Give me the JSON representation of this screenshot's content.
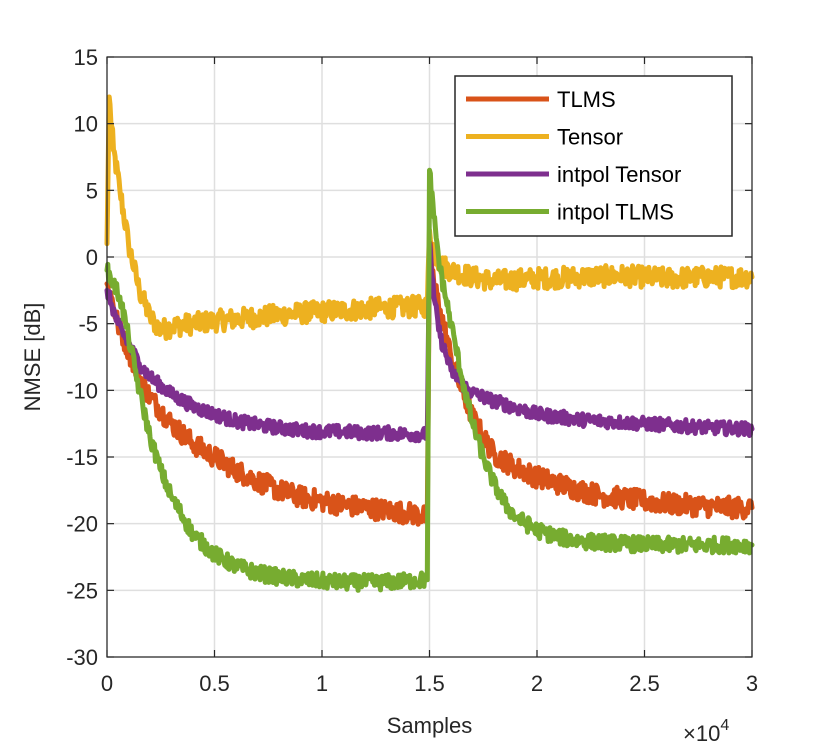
{
  "chart_data": {
    "type": "line",
    "title": "",
    "xlabel": "Samples",
    "ylabel": "NMSE [dB]",
    "x_exponent_label": "×10",
    "x_exponent_power": "4",
    "xlim": [
      0,
      3
    ],
    "ylim": [
      -30,
      15
    ],
    "xticks": [
      0,
      0.5,
      1,
      1.5,
      2,
      2.5,
      3
    ],
    "xtick_labels": [
      "0",
      "0.5",
      "1",
      "1.5",
      "2",
      "2.5",
      "3"
    ],
    "yticks": [
      -30,
      -25,
      -20,
      -15,
      -10,
      -5,
      0,
      5,
      10,
      15
    ],
    "ytick_labels": [
      "-30",
      "-25",
      "-20",
      "-15",
      "-10",
      "-5",
      "0",
      "5",
      "10",
      "15"
    ],
    "grid": true,
    "legend_position": "top-right",
    "series": [
      {
        "name": "TLMS",
        "color": "#D95319",
        "noise": 0.8,
        "x": [
          0,
          0.02,
          0.05,
          0.1,
          0.15,
          0.2,
          0.3,
          0.4,
          0.5,
          0.6,
          0.7,
          0.8,
          0.9,
          1.0,
          1.1,
          1.2,
          1.3,
          1.4,
          1.49,
          1.5,
          1.52,
          1.55,
          1.6,
          1.65,
          1.7,
          1.75,
          1.8,
          1.9,
          2.0,
          2.1,
          2.2,
          2.3,
          2.4,
          2.5,
          2.6,
          2.7,
          2.8,
          2.9,
          3.0
        ],
        "values": [
          -2,
          -3,
          -5,
          -7,
          -9,
          -10.5,
          -12.5,
          -14,
          -15,
          -16,
          -16.8,
          -17.5,
          -18,
          -18.3,
          -18.6,
          -18.8,
          -19,
          -19.2,
          -19.5,
          1,
          -2,
          -4,
          -7.5,
          -10,
          -12,
          -13.5,
          -14.8,
          -15.8,
          -16.5,
          -17,
          -17.5,
          -17.9,
          -18.1,
          -18.3,
          -18.5,
          -18.6,
          -18.7,
          -18.8,
          -18.8
        ]
      },
      {
        "name": "Tensor",
        "color": "#EDB120",
        "noise": 0.8,
        "x": [
          0,
          0.01,
          0.03,
          0.06,
          0.1,
          0.15,
          0.2,
          0.25,
          0.3,
          0.4,
          0.5,
          0.7,
          0.9,
          1.1,
          1.3,
          1.49,
          1.5,
          1.52,
          1.55,
          1.6,
          1.7,
          1.8,
          2.0,
          2.2,
          2.4,
          2.6,
          2.8,
          3.0
        ],
        "values": [
          1,
          12,
          8,
          5,
          1,
          -2.5,
          -4.5,
          -5.5,
          -5.2,
          -5,
          -4.8,
          -4.5,
          -4.2,
          -4,
          -3.8,
          -3.7,
          2,
          0.5,
          -0.5,
          -1,
          -1.5,
          -1.8,
          -1.6,
          -1.5,
          -1.4,
          -1.6,
          -1.5,
          -1.5
        ]
      },
      {
        "name": "intpol Tensor",
        "color": "#7E2F8E",
        "noise": 0.5,
        "x": [
          0,
          0.02,
          0.05,
          0.1,
          0.15,
          0.2,
          0.3,
          0.4,
          0.5,
          0.6,
          0.7,
          0.8,
          0.9,
          1.0,
          1.1,
          1.2,
          1.3,
          1.4,
          1.49,
          1.5,
          1.52,
          1.55,
          1.6,
          1.65,
          1.7,
          1.8,
          1.9,
          2.0,
          2.2,
          2.4,
          2.6,
          2.8,
          3.0
        ],
        "values": [
          -2.5,
          -3.5,
          -5,
          -6.5,
          -8,
          -9,
          -10.3,
          -11.2,
          -11.8,
          -12.3,
          -12.6,
          -12.8,
          -13,
          -13.1,
          -13.1,
          -13.2,
          -13.2,
          -13.3,
          -13.3,
          1,
          -3,
          -6,
          -8.5,
          -9.5,
          -10.2,
          -10.8,
          -11.3,
          -11.8,
          -12.2,
          -12.4,
          -12.6,
          -12.8,
          -12.9
        ]
      },
      {
        "name": "intpol TLMS",
        "color": "#77AC30",
        "noise": 0.6,
        "x": [
          0,
          0.03,
          0.06,
          0.1,
          0.15,
          0.2,
          0.25,
          0.3,
          0.4,
          0.5,
          0.6,
          0.7,
          0.8,
          0.9,
          1.0,
          1.1,
          1.2,
          1.3,
          1.4,
          1.49,
          1.5,
          1.52,
          1.55,
          1.6,
          1.65,
          1.7,
          1.75,
          1.8,
          1.85,
          1.9,
          2.0,
          2.1,
          2.2,
          2.4,
          2.6,
          2.8,
          3.0
        ],
        "values": [
          -1,
          -2,
          -3,
          -6,
          -10,
          -13.5,
          -16,
          -18,
          -20.8,
          -22.3,
          -23.2,
          -23.7,
          -24,
          -24.2,
          -24.3,
          -24.4,
          -24.4,
          -24.4,
          -24.3,
          -24.2,
          6.5,
          3,
          -1,
          -5,
          -9,
          -12.5,
          -15,
          -17,
          -18.5,
          -19.5,
          -20.5,
          -21,
          -21.3,
          -21.5,
          -21.6,
          -21.6,
          -21.6
        ]
      }
    ]
  }
}
